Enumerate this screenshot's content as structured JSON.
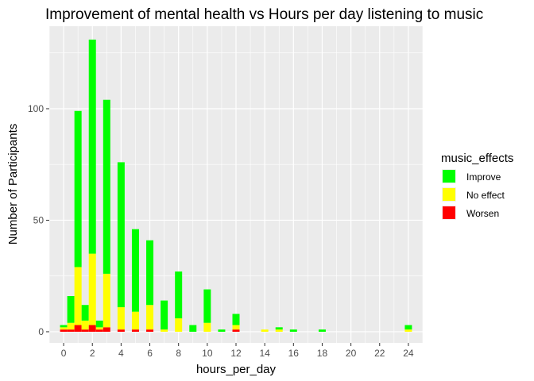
{
  "chart_data": {
    "type": "bar",
    "stacked": true,
    "title": "Improvement of mental health vs Hours per day listening to music",
    "xlabel": "hours_per_day",
    "ylabel": "Number of Participants",
    "xlim": [
      -1,
      25
    ],
    "ylim": [
      -5,
      137
    ],
    "x_ticks": [
      "0",
      "2",
      "4",
      "6",
      "8",
      "10",
      "12",
      "14",
      "16",
      "18",
      "20",
      "22",
      "24"
    ],
    "y_ticks": [
      "0",
      "50",
      "100"
    ],
    "grid": true,
    "legend": {
      "title": "music_effects",
      "position": "right"
    },
    "x": [
      0,
      0.5,
      1,
      1.5,
      2,
      2.5,
      3,
      4,
      5,
      6,
      7,
      8,
      9,
      10,
      11,
      12,
      14,
      15,
      16,
      18,
      24
    ],
    "series": [
      {
        "name": "Worsen",
        "color": "#FF0000",
        "values": [
          1,
          1,
          3,
          1,
          3,
          1,
          2,
          1,
          1,
          1,
          0,
          0,
          0,
          0,
          0,
          1,
          0,
          0,
          0,
          0,
          0
        ]
      },
      {
        "name": "No effect",
        "color": "#FFFF00",
        "values": [
          1,
          3,
          26,
          4,
          32,
          1,
          24,
          10,
          8,
          11,
          1,
          6,
          0,
          4,
          0,
          2,
          1,
          1,
          0,
          0,
          1
        ]
      },
      {
        "name": "Improve",
        "color": "#00FF00",
        "values": [
          1,
          12,
          70,
          7,
          96,
          3,
          78,
          65,
          37,
          29,
          13,
          21,
          3,
          15,
          1,
          5,
          0,
          1,
          1,
          1,
          2
        ]
      }
    ]
  }
}
